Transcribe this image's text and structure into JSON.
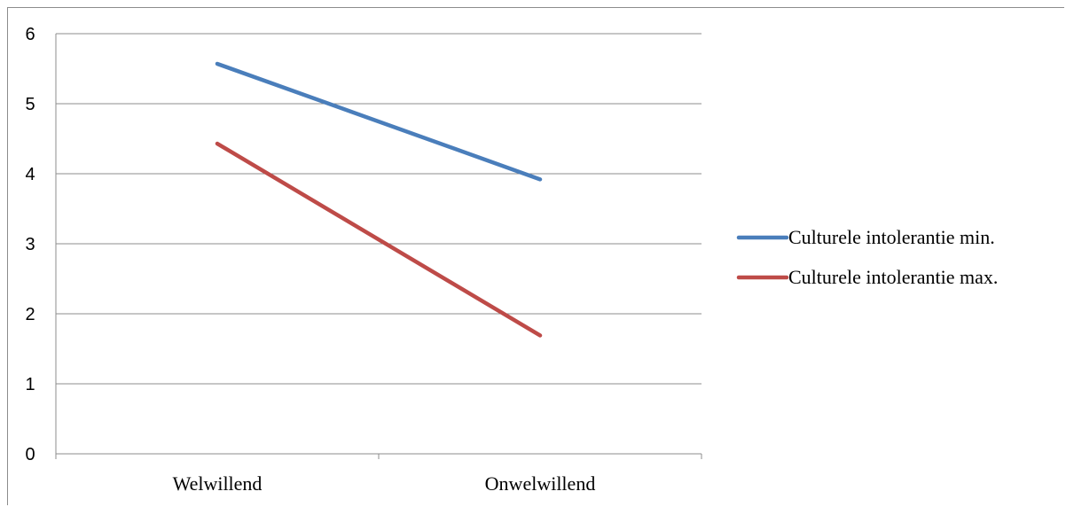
{
  "chart_data": {
    "type": "line",
    "title": "",
    "xlabel": "",
    "ylabel": "",
    "categories": [
      "Welwillend",
      "Onwelwillend"
    ],
    "ylim": [
      0,
      6
    ],
    "yticks": [
      0,
      1,
      2,
      3,
      4,
      5,
      6
    ],
    "grid": true,
    "legend_position": "right",
    "series": [
      {
        "name": "Culturele intolerantie min.",
        "values": [
          5.57,
          3.92
        ],
        "color": "#4a7ebb"
      },
      {
        "name": "Culturele intolerantie max.",
        "values": [
          4.43,
          1.69
        ],
        "color": "#be4b48"
      }
    ]
  }
}
